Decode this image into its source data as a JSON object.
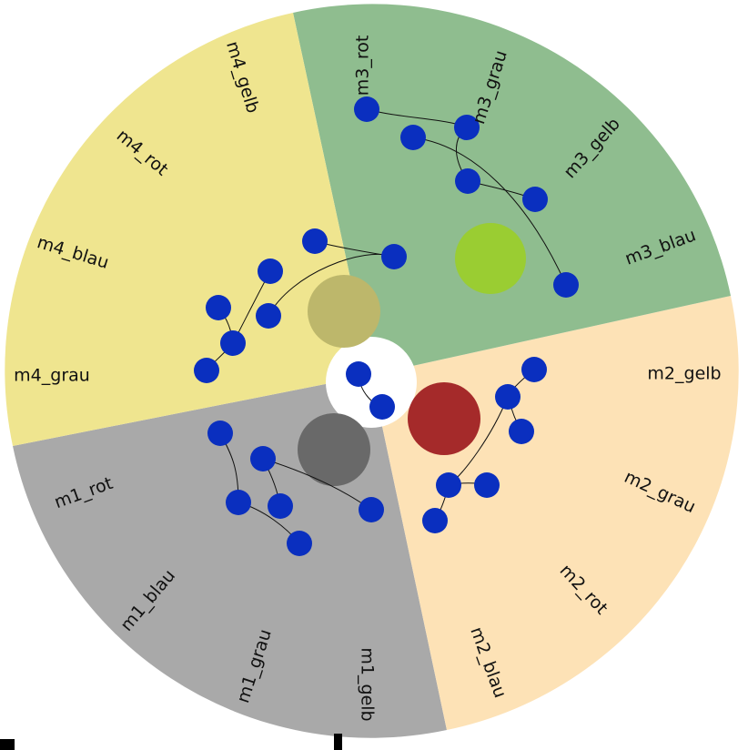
{
  "colors": {
    "m1_bg": "#a9a9a9",
    "m2_bg": "#fde2b6",
    "m3_bg": "#8fbd8f",
    "m4_bg": "#efe58f",
    "node": "#0a2fbf",
    "hub_m1": "#696969",
    "hub_m2": "#a52a2a",
    "hub_m3": "#9acd32",
    "hub_m4": "#bdb76b",
    "center": "#ffffff"
  },
  "groups": [
    {
      "id": "m1",
      "hub_color": "hub_m1",
      "bg": "m1_bg"
    },
    {
      "id": "m2",
      "hub_color": "hub_m2",
      "bg": "m2_bg"
    },
    {
      "id": "m3",
      "hub_color": "hub_m3",
      "bg": "m3_bg"
    },
    {
      "id": "m4",
      "hub_color": "hub_m4",
      "bg": "m4_bg"
    }
  ],
  "labels": {
    "m1_rot": "m1_rot",
    "m1_blau": "m1_blau",
    "m1_grau": "m1_grau",
    "m1_gelb": "m1_gelb",
    "m2_gelb": "m2_gelb",
    "m2_grau": "m2_grau",
    "m2_rot": "m2_rot",
    "m2_blau": "m2_blau",
    "m3_rot": "m3_rot",
    "m3_grau": "m3_grau",
    "m3_gelb": "m3_gelb",
    "m3_blau": "m3_blau",
    "m4_gelb": "m4_gelb",
    "m4_rot": "m4_rot",
    "m4_blau": "m4_blau",
    "m4_grau": "m4_grau"
  }
}
